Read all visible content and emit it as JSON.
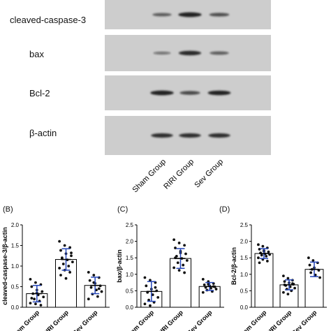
{
  "western_blot": {
    "lanes": [
      "Sham Group",
      "RIRI Group",
      "Sev Group"
    ],
    "rows": [
      {
        "label": "cleaved-caspase-3",
        "band_intensity": [
          0.45,
          0.95,
          0.55
        ]
      },
      {
        "label": "bax",
        "band_intensity": [
          0.25,
          0.85,
          0.45
        ]
      },
      {
        "label": "Bcl-2",
        "band_intensity": [
          0.95,
          0.6,
          0.9
        ]
      },
      {
        "label": "β-actin",
        "band_intensity": [
          0.8,
          0.8,
          0.8
        ]
      }
    ]
  },
  "colors": {
    "blot_bg": "#cdcdcd",
    "band": "#1a1a1a",
    "error_bar": "#2546b8",
    "point": "#111111"
  },
  "chart_data": [
    {
      "type": "bar",
      "panel": "(B)",
      "categories": [
        "Sham Group",
        "RIRI Group",
        "Sev Group"
      ],
      "values": [
        0.33,
        1.16,
        0.53
      ],
      "errors": [
        0.2,
        0.26,
        0.2
      ],
      "ylabel": "cleaved-caspase-3/β-actin",
      "ylim": [
        0,
        2.0
      ],
      "yticks": [
        "0.0",
        "0.5",
        "1.0",
        "1.5",
        "2.0"
      ],
      "points": [
        [
          0.68,
          0.6,
          0.55,
          0.5,
          0.42,
          0.38,
          0.33,
          0.3,
          0.25,
          0.2,
          0.15,
          0.1,
          0.08,
          0.05,
          0.22,
          0.35
        ],
        [
          1.6,
          1.5,
          1.45,
          1.38,
          1.3,
          1.25,
          1.2,
          1.15,
          1.1,
          1.05,
          1.0,
          0.95,
          0.9,
          0.85,
          0.78,
          0.7,
          1.32,
          1.18
        ],
        [
          0.85,
          0.78,
          0.72,
          0.65,
          0.58,
          0.52,
          0.48,
          0.42,
          0.38,
          0.32,
          0.26,
          0.2,
          0.6,
          0.45
        ]
      ]
    },
    {
      "type": "bar",
      "panel": "(C)",
      "categories": [
        "Sham Group",
        "RIRI Group",
        "Sev Group"
      ],
      "values": [
        0.48,
        1.48,
        0.63
      ],
      "errors": [
        0.3,
        0.3,
        0.12
      ],
      "ylabel": "bax/β-actin",
      "ylim": [
        0,
        2.5
      ],
      "yticks": [
        "0.0",
        "0.5",
        "1.0",
        "1.5",
        "2.0",
        "2.5"
      ],
      "points": [
        [
          0.9,
          0.82,
          0.75,
          0.65,
          0.55,
          0.5,
          0.45,
          0.38,
          0.3,
          0.22,
          0.15,
          0.1,
          0.05,
          0.6
        ],
        [
          2.05,
          1.95,
          1.88,
          1.8,
          1.7,
          1.62,
          1.55,
          1.48,
          1.42,
          1.35,
          1.28,
          1.2,
          1.12,
          1.05,
          1.5,
          1.65
        ],
        [
          0.85,
          0.78,
          0.72,
          0.68,
          0.65,
          0.62,
          0.6,
          0.58,
          0.55,
          0.52,
          0.48,
          0.45,
          0.7,
          0.63
        ]
      ]
    },
    {
      "type": "bar",
      "panel": "(D)",
      "categories": [
        "Sham Group",
        "RIRI Group",
        "Sev Group"
      ],
      "values": [
        1.63,
        0.68,
        1.15
      ],
      "errors": [
        0.15,
        0.15,
        0.22
      ],
      "ylabel": "Bcl-2/β-actin",
      "ylim": [
        0,
        2.5
      ],
      "yticks": [
        "0.0",
        "0.5",
        "1.0",
        "1.5",
        "2.0",
        "2.5"
      ],
      "points": [
        [
          1.9,
          1.85,
          1.8,
          1.76,
          1.72,
          1.68,
          1.65,
          1.62,
          1.6,
          1.58,
          1.55,
          1.5,
          1.45,
          1.4,
          1.35,
          1.7
        ],
        [
          0.95,
          0.88,
          0.82,
          0.78,
          0.74,
          0.7,
          0.66,
          0.62,
          0.58,
          0.55,
          0.5,
          0.45,
          0.4,
          0.72,
          0.68
        ],
        [
          1.5,
          1.42,
          1.35,
          1.28,
          1.2,
          1.12,
          1.05,
          0.98,
          0.9,
          1.15
        ]
      ]
    }
  ]
}
